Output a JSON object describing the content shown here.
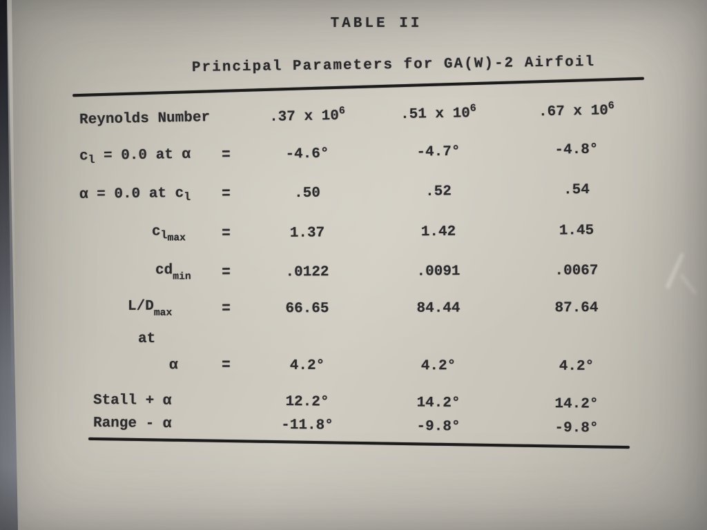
{
  "page": {
    "title": "TABLE II",
    "subtitle": "Principal Parameters for GA(W)-2 Airfoil"
  },
  "colors": {
    "paper": "#cdc9bf",
    "ink": "#2c2b2d",
    "edge_shadow": "#33353b"
  },
  "table": {
    "header": {
      "label": "Reynolds Number",
      "columns": [
        {
          "value": ".37 x 10",
          "exp": "6"
        },
        {
          "value": ".51 x 10",
          "exp": "6"
        },
        {
          "value": ".67 x 10",
          "exp": "6"
        }
      ]
    },
    "rows": [
      {
        "label": {
          "pre": "c",
          "sub": "l",
          "post": " = 0.0 at α"
        },
        "eq": "=",
        "values": [
          "-4.6°",
          "-4.7°",
          "-4.8°"
        ]
      },
      {
        "label": {
          "pre": "α = 0.0 at c",
          "sub": "l"
        },
        "eq": "=",
        "values": [
          ".50",
          ".52",
          ".54"
        ]
      },
      {
        "label": {
          "pre": "c",
          "sub": "l",
          "subsub": "max"
        },
        "eq": "=",
        "values": [
          "1.37",
          "1.42",
          "1.45"
        ]
      },
      {
        "label": {
          "pre": "cd",
          "subsub": "min"
        },
        "eq": "=",
        "values": [
          ".0122",
          ".0091",
          ".0067"
        ]
      },
      {
        "label": {
          "pre": "L/D",
          "subsub": "max"
        },
        "eq": "=",
        "values": [
          "66.65",
          "84.44",
          "87.64"
        ]
      },
      {
        "label": {
          "pre": "at"
        }
      },
      {
        "label": {
          "pre": "α"
        },
        "eq": "=",
        "values": [
          "4.2°",
          "4.2°",
          "4.2°"
        ]
      },
      {
        "label": {
          "pre": "Stall + α"
        },
        "values": [
          "12.2°",
          "14.2°",
          "14.2°"
        ]
      },
      {
        "label": {
          "pre": "Range - α"
        },
        "values": [
          "-11.8°",
          "-9.8°",
          "-9.8°"
        ]
      }
    ]
  }
}
